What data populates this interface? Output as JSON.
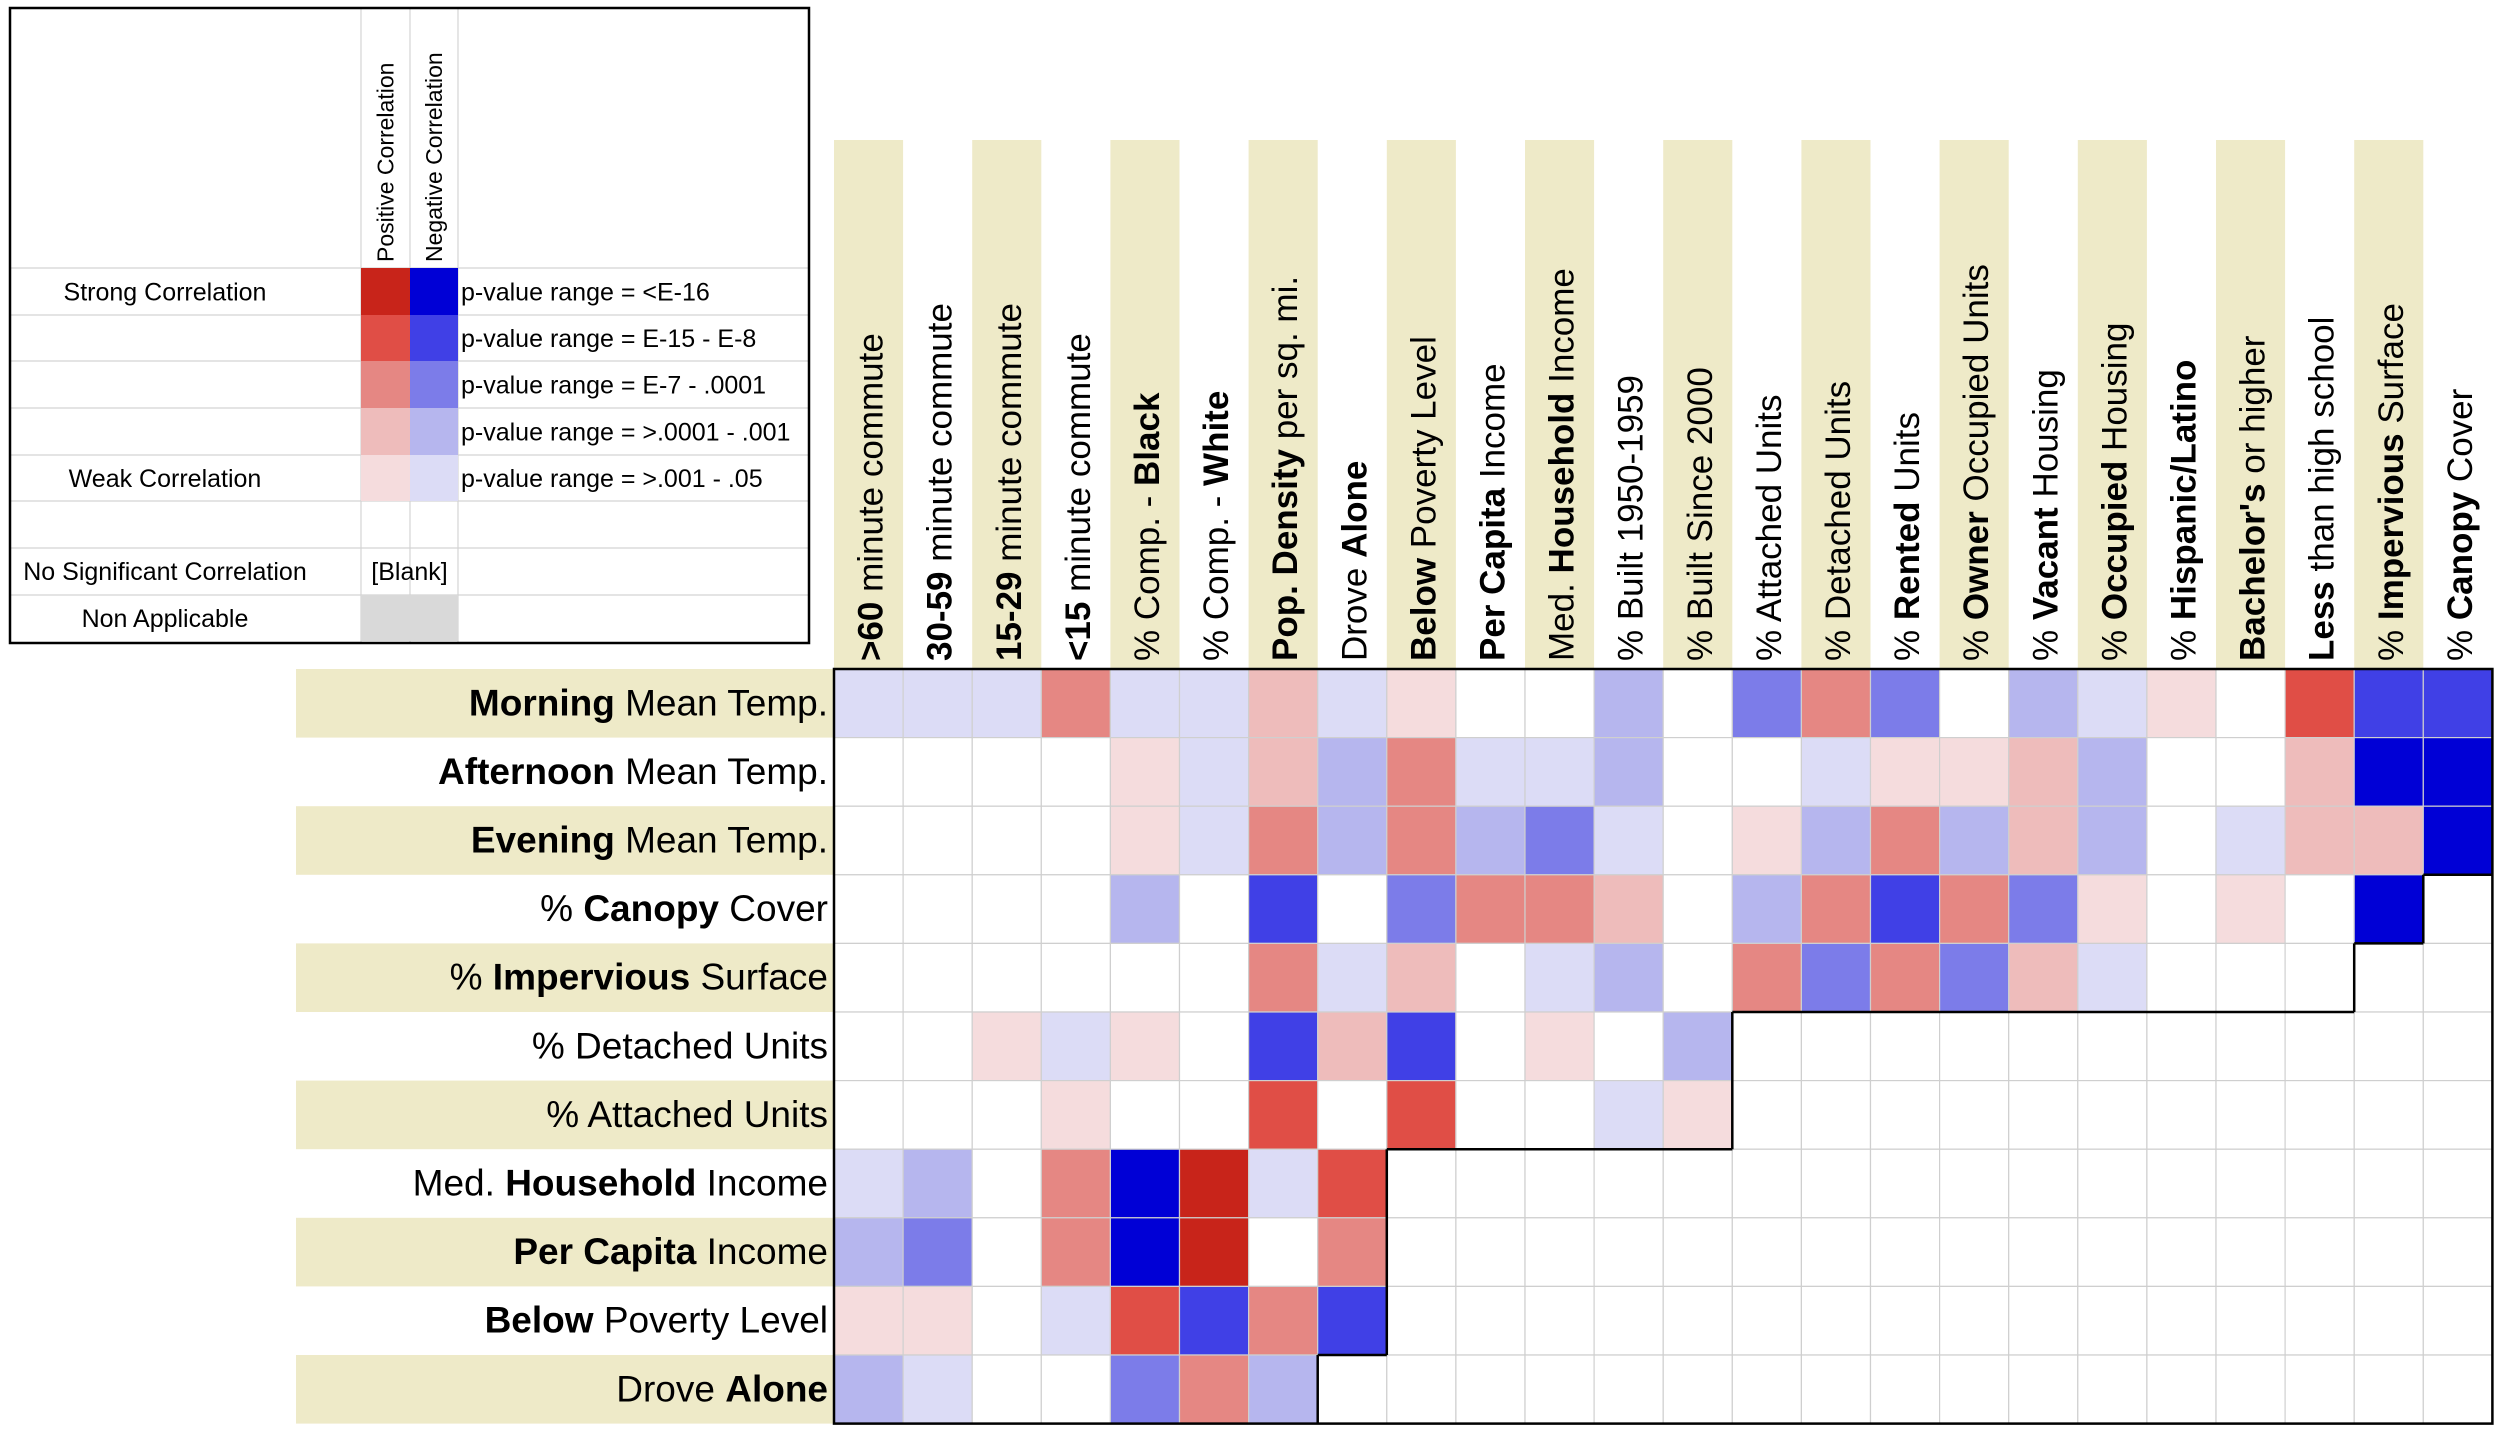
{
  "chart_data": {
    "type": "heatmap",
    "title": "",
    "columns": [
      [
        {
          "t": ">60",
          "b": true
        },
        {
          "t": " minute commute"
        }
      ],
      [
        {
          "t": "30-59",
          "b": true
        },
        {
          "t": " minute commute"
        }
      ],
      [
        {
          "t": "15-29",
          "b": true
        },
        {
          "t": " minute commute"
        }
      ],
      [
        {
          "t": "<15",
          "b": true
        },
        {
          "t": " minute commute"
        }
      ],
      [
        {
          "t": "% Comp. - "
        },
        {
          "t": "Black",
          "b": true
        }
      ],
      [
        {
          "t": "% Comp. - "
        },
        {
          "t": "White",
          "b": true
        }
      ],
      [
        {
          "t": "Pop. Density",
          "b": true
        },
        {
          "t": " per sq. mi."
        }
      ],
      [
        {
          "t": "Drove "
        },
        {
          "t": "Alone",
          "b": true
        }
      ],
      [
        {
          "t": "Below",
          "b": true
        },
        {
          "t": " Poverty Level"
        }
      ],
      [
        {
          "t": "Per Capita",
          "b": true
        },
        {
          "t": " Income"
        }
      ],
      [
        {
          "t": "Med. "
        },
        {
          "t": "Household",
          "b": true
        },
        {
          "t": " Income"
        }
      ],
      [
        {
          "t": "% Built 1950-1959"
        }
      ],
      [
        {
          "t": "% Built Since 2000"
        }
      ],
      [
        {
          "t": "% Attached Units"
        }
      ],
      [
        {
          "t": "% Detached Units"
        }
      ],
      [
        {
          "t": "% "
        },
        {
          "t": "Rented",
          "b": true
        },
        {
          "t": " Units"
        }
      ],
      [
        {
          "t": "% "
        },
        {
          "t": "Owner",
          "b": true
        },
        {
          "t": " Occupied Units"
        }
      ],
      [
        {
          "t": "% "
        },
        {
          "t": "Vacant",
          "b": true
        },
        {
          "t": " Housing"
        }
      ],
      [
        {
          "t": "% "
        },
        {
          "t": "Occupied",
          "b": true
        },
        {
          "t": " Housing"
        }
      ],
      [
        {
          "t": "% "
        },
        {
          "t": "Hispanic/Latino",
          "b": true
        }
      ],
      [
        {
          "t": "Bachelor's",
          "b": true
        },
        {
          "t": " or higher"
        }
      ],
      [
        {
          "t": "Less",
          "b": true
        },
        {
          "t": " than high school"
        }
      ],
      [
        {
          "t": "% "
        },
        {
          "t": "Impervious",
          "b": true
        },
        {
          "t": " Surface"
        }
      ],
      [
        {
          "t": "% "
        },
        {
          "t": "Canopy",
          "b": true
        },
        {
          "t": " Cover"
        }
      ]
    ],
    "rows": [
      [
        {
          "t": "Morning",
          "b": true
        },
        {
          "t": " Mean Temp."
        }
      ],
      [
        {
          "t": "Afternoon",
          "b": true
        },
        {
          "t": " Mean Temp."
        }
      ],
      [
        {
          "t": "Evening",
          "b": true
        },
        {
          "t": " Mean Temp."
        }
      ],
      [
        {
          "t": "% "
        },
        {
          "t": "Canopy",
          "b": true
        },
        {
          "t": " Cover"
        }
      ],
      [
        {
          "t": "% "
        },
        {
          "t": "Impervious",
          "b": true
        },
        {
          "t": " Surface"
        }
      ],
      [
        {
          "t": "% Detached Units"
        }
      ],
      [
        {
          "t": "% Attached Units"
        }
      ],
      [
        {
          "t": "Med. "
        },
        {
          "t": "Household",
          "b": true
        },
        {
          "t": " Income"
        }
      ],
      [
        {
          "t": "Per Capita",
          "b": true
        },
        {
          "t": " Income"
        }
      ],
      [
        {
          "t": "Below",
          "b": true
        },
        {
          "t": " Poverty Level"
        }
      ],
      [
        {
          "t": "Drove "
        },
        {
          "t": "Alone",
          "b": true
        }
      ]
    ],
    "value_scale": "signed significance level: +5 strongest positive ... +1 weakest positive, 0 no significant correlation, -1 weakest negative ... -5 strongest negative",
    "values": [
      [
        -1,
        -1,
        -1,
        3,
        -1,
        -1,
        2,
        -1,
        1,
        0,
        0,
        -2,
        0,
        -3,
        3,
        -3,
        0,
        -2,
        -1,
        1,
        0,
        4,
        -4,
        -4
      ],
      [
        0,
        0,
        0,
        0,
        1,
        -1,
        2,
        -2,
        3,
        -1,
        -1,
        -2,
        0,
        0,
        -1,
        1,
        1,
        2,
        -2,
        0,
        0,
        2,
        -5,
        -5
      ],
      [
        0,
        0,
        0,
        0,
        1,
        -1,
        3,
        -2,
        3,
        -2,
        -3,
        -1,
        0,
        1,
        -2,
        3,
        -2,
        2,
        -2,
        0,
        -1,
        2,
        2,
        -5
      ],
      [
        0,
        0,
        0,
        0,
        -2,
        0,
        -4,
        0,
        -3,
        3,
        3,
        2,
        0,
        -2,
        3,
        -4,
        3,
        -3,
        1,
        0,
        1,
        0,
        -5,
        0
      ],
      [
        0,
        0,
        0,
        0,
        0,
        0,
        3,
        -1,
        2,
        0,
        -1,
        -2,
        0,
        3,
        -3,
        3,
        -3,
        2,
        -1,
        0,
        0,
        0,
        0,
        0
      ],
      [
        0,
        0,
        1,
        -1,
        1,
        0,
        -4,
        2,
        -4,
        0,
        1,
        0,
        -2,
        0,
        0,
        0,
        0,
        0,
        0,
        0,
        0,
        0,
        0,
        0
      ],
      [
        0,
        0,
        0,
        1,
        0,
        0,
        4,
        0,
        4,
        0,
        0,
        -1,
        1,
        0,
        0,
        0,
        0,
        0,
        0,
        0,
        0,
        0,
        0,
        0
      ],
      [
        -1,
        -2,
        0,
        3,
        -5,
        5,
        -1,
        4,
        0,
        0,
        0,
        0,
        0,
        0,
        0,
        0,
        0,
        0,
        0,
        0,
        0,
        0,
        0,
        0
      ],
      [
        -2,
        -3,
        0,
        3,
        -5,
        5,
        0,
        3,
        0,
        0,
        0,
        0,
        0,
        0,
        0,
        0,
        0,
        0,
        0,
        0,
        0,
        0,
        0,
        0
      ],
      [
        1,
        1,
        0,
        -1,
        4,
        -4,
        3,
        -4,
        0,
        0,
        0,
        0,
        0,
        0,
        0,
        0,
        0,
        0,
        0,
        0,
        0,
        0,
        0,
        0
      ],
      [
        -2,
        -1,
        0,
        0,
        -3,
        3,
        -2,
        0,
        0,
        0,
        0,
        0,
        0,
        0,
        0,
        0,
        0,
        0,
        0,
        0,
        0,
        0,
        0,
        0
      ]
    ],
    "applicable_columns_per_row": [
      24,
      24,
      24,
      23,
      22,
      13,
      13,
      8,
      8,
      8,
      7
    ]
  },
  "legend": {
    "col_headers": [
      "Positive Correlation",
      "Negative Correlation"
    ],
    "rows": [
      {
        "label": "Strong Correlation",
        "range": "p-value range = <E-16",
        "pos": "#c8241a",
        "neg": "#0000d6"
      },
      {
        "label": "",
        "range": "p-value range = E-15 - E-8",
        "pos": "#e04e46",
        "neg": "#4040e6"
      },
      {
        "label": "",
        "range": "p-value range = E-7 - .0001",
        "pos": "#e58783",
        "neg": "#7c7ce9"
      },
      {
        "label": "",
        "range": "p-value range = >.0001 - .001",
        "pos": "#eebcbb",
        "neg": "#b6b6ee"
      },
      {
        "label": "Weak Correlation",
        "range": "p-value range = >.001 - .05",
        "pos": "#f5dcdd",
        "neg": "#dcdcf6"
      }
    ],
    "blank_label": "No Significant Correlation",
    "blank_value": "[Blank]",
    "na_label": "Non Applicable"
  },
  "colors": {
    "header_fill": "#eeeac8",
    "grid": "#cfcfcf",
    "na_fill": "#d9d9d9",
    "pos": [
      "#f5dcdd",
      "#eebcbb",
      "#e58783",
      "#e04e46",
      "#c8241a"
    ],
    "neg": [
      "#dcdcf6",
      "#b6b6ee",
      "#7c7ce9",
      "#4040e6",
      "#0000d6"
    ]
  }
}
